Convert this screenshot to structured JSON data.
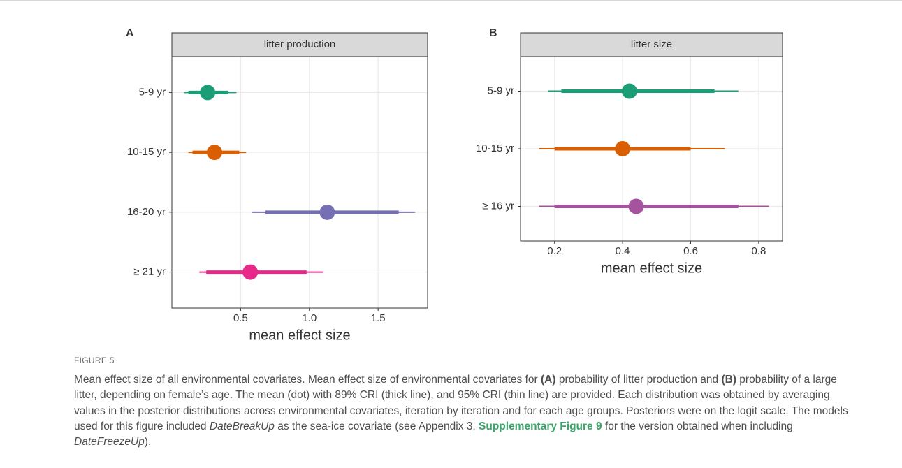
{
  "chart_data": [
    {
      "type": "pointrange",
      "panel_label": "A",
      "strip": "litter production",
      "xlabel": "mean effect size",
      "categories": [
        "5-9 yr",
        "10-15 yr",
        "16-20 yr",
        "≥ 21 yr"
      ],
      "values": [
        0.26,
        0.31,
        1.13,
        0.57
      ],
      "lower_89": [
        0.12,
        0.15,
        0.68,
        0.25
      ],
      "upper_89": [
        0.41,
        0.49,
        1.65,
        0.98
      ],
      "lower_95": [
        0.09,
        0.12,
        0.58,
        0.2
      ],
      "upper_95": [
        0.47,
        0.54,
        1.77,
        1.1
      ],
      "colors": [
        "#1b9e77",
        "#d95f02",
        "#7570b3",
        "#e7298a"
      ],
      "xlim": [
        0.0,
        1.86
      ],
      "xticks": [
        0.5,
        {
          "value": 1,
          "label": "1.0"
        },
        1.5
      ],
      "grid": true
    },
    {
      "type": "pointrange",
      "panel_label": "B",
      "strip": "litter size",
      "xlabel": "mean effect size",
      "categories": [
        "5-9 yr",
        "10-15 yr",
        "≥ 16 yr"
      ],
      "values": [
        0.42,
        0.4,
        0.44
      ],
      "lower_89": [
        0.22,
        0.2,
        0.2
      ],
      "upper_89": [
        0.67,
        0.6,
        0.74
      ],
      "lower_95": [
        0.18,
        0.155,
        0.155
      ],
      "upper_95": [
        0.74,
        0.7,
        0.83
      ],
      "colors": [
        "#1b9e77",
        "#d95f02",
        "#a5539f"
      ],
      "xlim": [
        0.1,
        0.87
      ],
      "xticks": [
        0.2,
        0.4,
        0.6,
        0.8
      ],
      "grid": true
    }
  ],
  "caption": {
    "label": "FIGURE 5",
    "segments": [
      {
        "text": "Mean effect size of all environmental covariates. Mean effect size of environmental covariates for ",
        "style": "plain"
      },
      {
        "text": "(A)",
        "style": "bold"
      },
      {
        "text": " probability of litter production and ",
        "style": "plain"
      },
      {
        "text": "(B)",
        "style": "bold"
      },
      {
        "text": " probability of a large litter, depending on female’s age. The mean (dot) with 89% CRI (thick line), and 95% CRI (thin line) are provided. Each distribution was obtained by averaging values in the posterior distributions across environmental covariates, iteration by iteration and for each age groups. Posteriors were on the logit scale. The models used for this figure included ",
        "style": "plain"
      },
      {
        "text": "DateBreakUp",
        "style": "italic"
      },
      {
        "text": " as the sea-ice covariate (see Appendix 3, ",
        "style": "plain"
      },
      {
        "text": "Supplementary Figure 9",
        "style": "link"
      },
      {
        "text": " for the version obtained when including ",
        "style": "plain"
      },
      {
        "text": "DateFreezeUp",
        "style": "italic"
      },
      {
        "text": ").",
        "style": "plain"
      }
    ]
  }
}
